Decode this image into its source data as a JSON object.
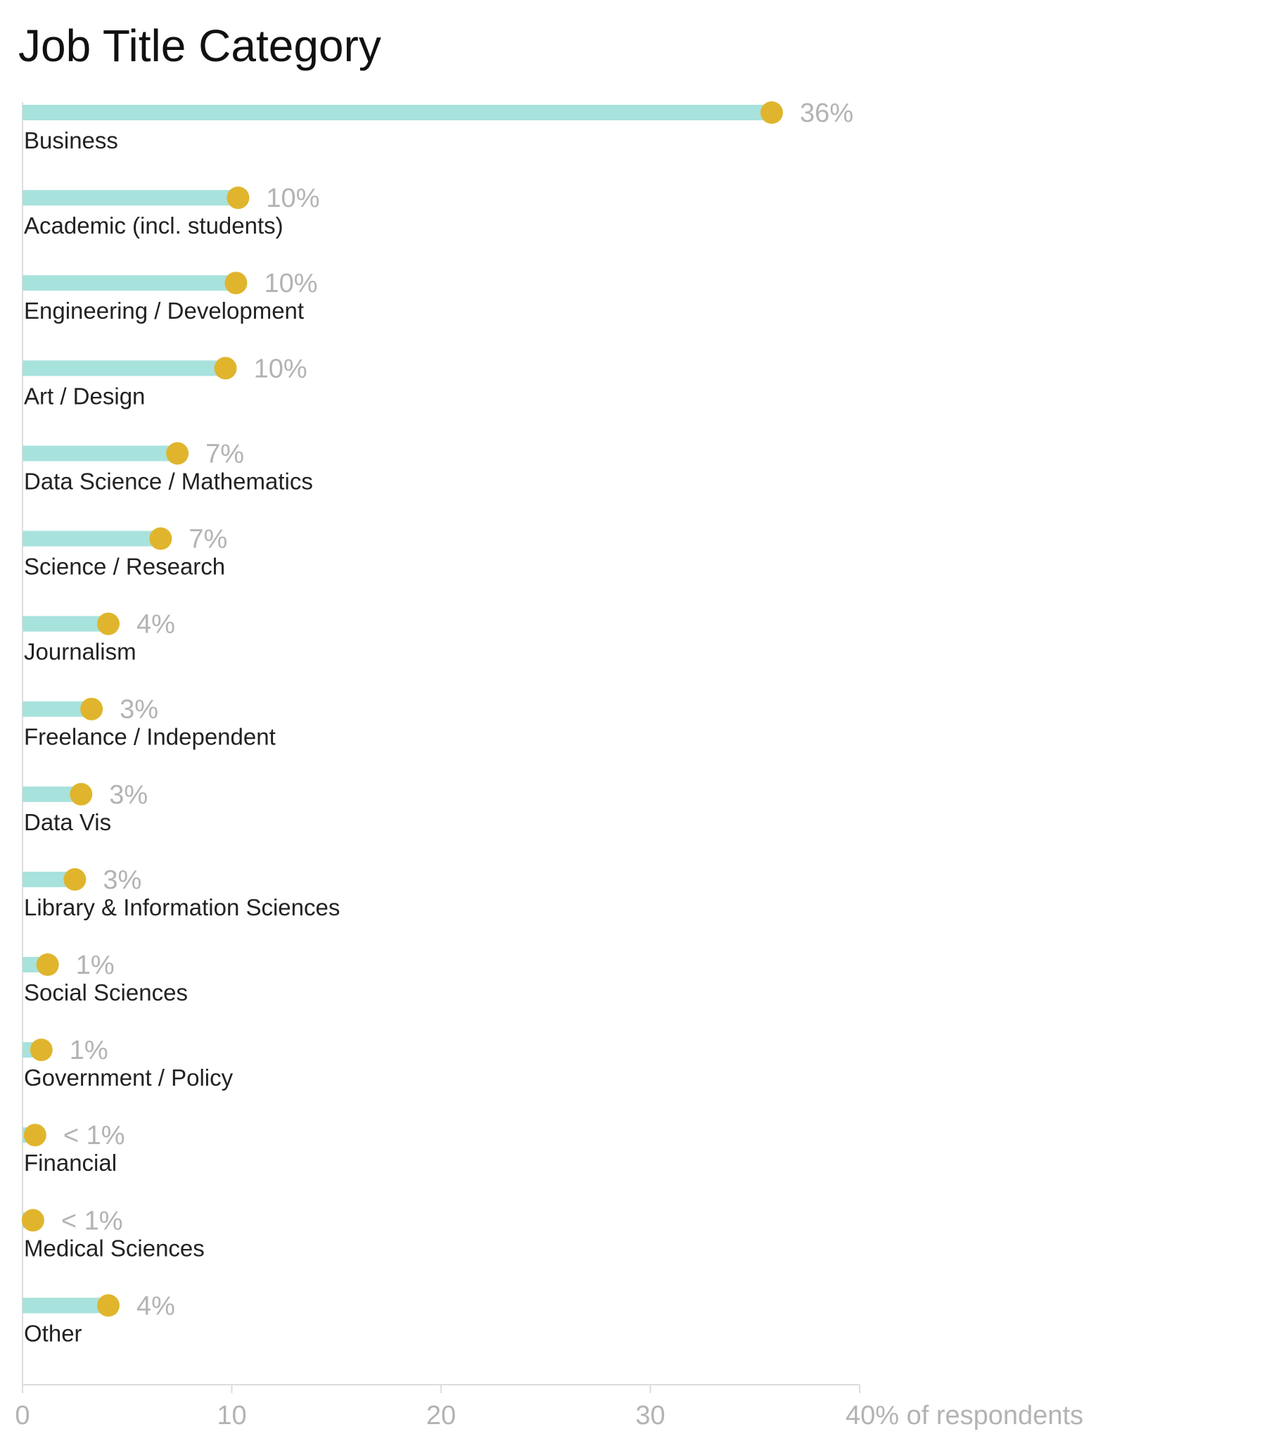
{
  "chart_data": {
    "type": "bar",
    "title": "Job Title Category",
    "xlabel": "",
    "ylabel": "",
    "xlim": [
      0,
      40
    ],
    "x_ticks": [
      "0",
      "10",
      "20",
      "30",
      "40% of respondents"
    ],
    "x_tick_values": [
      0,
      10,
      20,
      30,
      40
    ],
    "orientation": "horizontal",
    "grid": false,
    "categories": [
      "Business",
      "Academic (incl. students)",
      "Engineering / Development",
      "Art / Design",
      "Data Science / Mathematics",
      "Science / Research",
      "Journalism",
      "Freelance / Independent",
      "Data Vis",
      "Library & Information Sciences",
      "Social Sciences",
      "Government / Policy",
      "Financial",
      "Medical Sciences",
      "Other"
    ],
    "values": [
      35.8,
      10.3,
      10.2,
      9.7,
      7.4,
      6.6,
      4.1,
      3.3,
      2.8,
      2.5,
      1.2,
      0.9,
      0.6,
      0.5,
      4.1
    ],
    "value_labels": [
      "36%",
      "10%",
      "10%",
      "10%",
      "7%",
      "7%",
      "4%",
      "3%",
      "3%",
      "3%",
      "1%",
      "1%",
      "< 1%",
      "< 1%",
      "4%"
    ],
    "colors": {
      "bar": "#a8e2dc",
      "dot": "#e0b52d",
      "value_label": "#b3b3b3",
      "category_label": "#222222",
      "axis": "#dddddd"
    }
  }
}
